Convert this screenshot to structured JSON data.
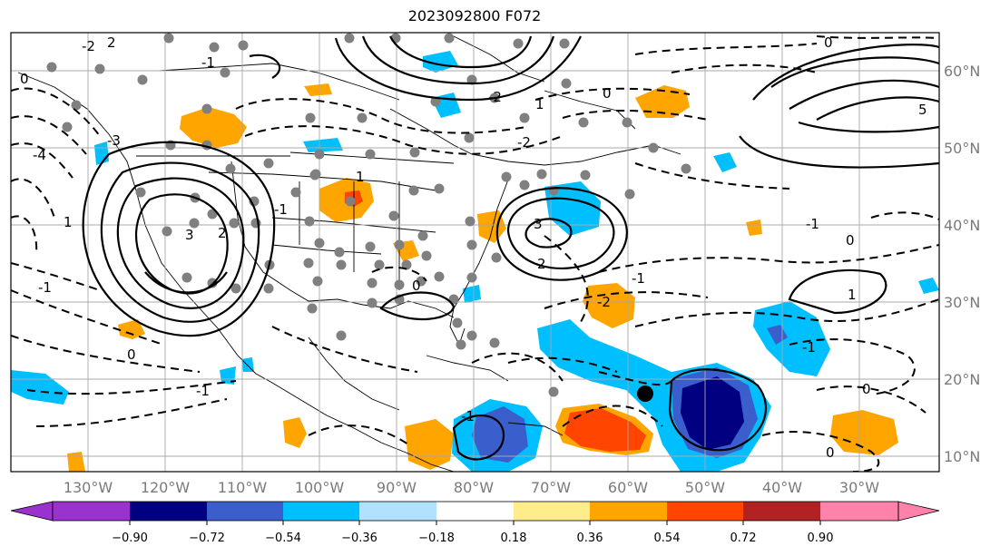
{
  "title": "2023092800 F072",
  "map": {
    "projection": "PlateCarree",
    "lon_range": [
      -140,
      -20
    ],
    "lat_range": [
      7,
      65
    ],
    "lon_ticks": [
      "130°W",
      "120°W",
      "110°W",
      "100°W",
      "90°W",
      "80°W",
      "70°W",
      "60°W",
      "50°W",
      "40°W",
      "30°W"
    ],
    "lat_ticks": [
      "10°N",
      "20°N",
      "30°N",
      "40°N",
      "50°N",
      "60°N"
    ],
    "grid": true,
    "gridline_color": "#a0a0a0",
    "axis_label_color": "#7a7a7a",
    "contour_labels": [
      "2",
      "-2",
      "0",
      "-3",
      "-4",
      "-1",
      "1",
      "3",
      "-1",
      "0",
      "2",
      "-2",
      "1",
      "0",
      "-1",
      "-1",
      "-2",
      "1",
      "0",
      "-1",
      "2",
      "3",
      "5",
      "0",
      "-1",
      "1",
      "0",
      "-1",
      "0",
      "-2",
      "0",
      "-1"
    ],
    "marker": {
      "lon": -58,
      "lat": 18,
      "color": "#000000"
    }
  },
  "colorbar": {
    "extend": "both",
    "tick_labels": [
      "−0.90",
      "−0.72",
      "−0.54",
      "−0.36",
      "−0.18",
      "0.18",
      "0.36",
      "0.54",
      "0.72",
      "0.90"
    ],
    "colors": [
      "#9a32cd",
      "#000080",
      "#3a5fcd",
      "#00bfff",
      "#b0e2ff",
      "#ffffff",
      "#ffec8b",
      "#ffa500",
      "#ff4500",
      "#b22222",
      "#ff82ab"
    ]
  }
}
